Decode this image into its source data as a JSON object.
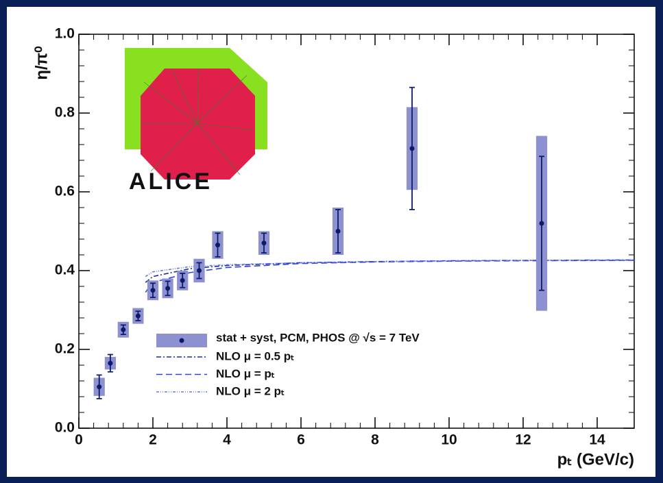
{
  "chart_data": {
    "type": "errorbar",
    "x_label": "pₜ (GeV/c)",
    "y_label": "η/π⁰",
    "logo_text": "ALICE",
    "xlim": [
      0,
      15
    ],
    "ylim": [
      0,
      1.0
    ],
    "xticks": [
      0,
      2,
      4,
      6,
      8,
      10,
      12,
      14
    ],
    "yticks": [
      {
        "value": 0,
        "label": "0.0"
      },
      0.2,
      0.4,
      0.6,
      0.8,
      {
        "value": 1,
        "label": "1.0"
      }
    ],
    "series": [
      {
        "name": "stat + syst, PCM, PHOS @ √s = 7 TeV",
        "color": "#0b1a6b",
        "box_color": "#8e91cf",
        "x": [
          0.55,
          0.85,
          1.2,
          1.6,
          2.0,
          2.4,
          2.8,
          3.25,
          3.75,
          5.0,
          7.0,
          9.0,
          12.5
        ],
        "values": [
          0.105,
          0.165,
          0.25,
          0.285,
          0.35,
          0.355,
          0.375,
          0.4,
          0.465,
          0.47,
          0.5,
          0.71,
          0.52
        ],
        "stat_err": [
          0.03,
          0.022,
          0.012,
          0.012,
          0.018,
          0.018,
          0.018,
          0.02,
          0.03,
          0.025,
          0.055,
          0.155,
          0.17
        ],
        "syst_err": [
          0.023,
          0.016,
          0.02,
          0.02,
          0.025,
          0.025,
          0.025,
          0.03,
          0.035,
          0.03,
          0.06,
          0.105,
          0.222
        ]
      }
    ],
    "curves": [
      {
        "name": "NLO μ = 0.5 pₜ",
        "color": "#1a2a9a",
        "dash": "7,3,2,3",
        "x": [
          1.8,
          2,
          3,
          4,
          6,
          8,
          10,
          12,
          15
        ],
        "values": [
          0.37,
          0.385,
          0.405,
          0.413,
          0.42,
          0.423,
          0.425,
          0.426,
          0.427
        ]
      },
      {
        "name": "NLO μ = pₜ",
        "color": "#2f44dd",
        "dash": "9,5",
        "x": [
          1.8,
          2,
          3,
          4,
          6,
          8,
          10,
          12,
          15
        ],
        "values": [
          0.345,
          0.37,
          0.395,
          0.408,
          0.418,
          0.422,
          0.424,
          0.425,
          0.426
        ]
      },
      {
        "name": "NLO μ = 2 pₜ",
        "color": "#6676ee",
        "dash": "4,2,1,2,1,2",
        "x": [
          1.8,
          2,
          3,
          4,
          6,
          8,
          10,
          12,
          15
        ],
        "values": [
          0.385,
          0.397,
          0.41,
          0.415,
          0.42,
          0.423,
          0.425,
          0.426,
          0.427
        ]
      }
    ]
  }
}
